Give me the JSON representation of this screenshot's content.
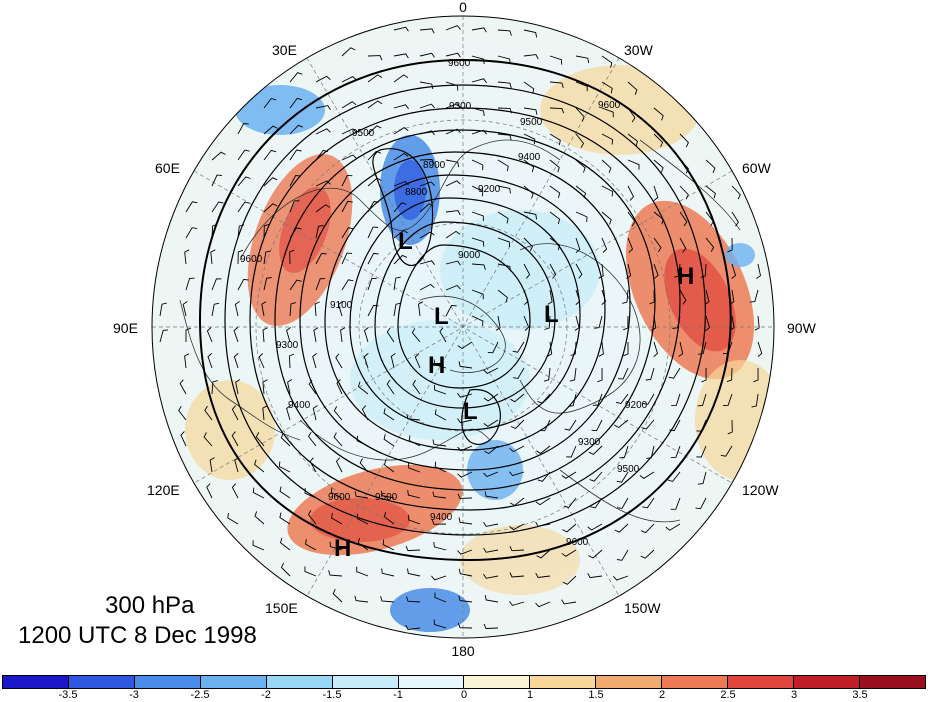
{
  "map": {
    "title_level": "300 hPa",
    "title_time": "1200 UTC 8 Dec 1998",
    "longitude_labels": {
      "deg0": "0",
      "w30": "30W",
      "w60": "60W",
      "w90": "90W",
      "w120": "120W",
      "w150": "150W",
      "deg180": "180",
      "e150": "150E",
      "e120": "120E",
      "e90": "90E",
      "e60": "60E",
      "e30": "30E"
    },
    "pressure_centers": [
      {
        "type": "H",
        "label": "H"
      },
      {
        "type": "H",
        "label": "H"
      },
      {
        "type": "H",
        "label": "H"
      },
      {
        "type": "L",
        "label": "L"
      },
      {
        "type": "L",
        "label": "L"
      },
      {
        "type": "L",
        "label": "L"
      },
      {
        "type": "L",
        "label": "L"
      }
    ],
    "contour_labels": [
      "9600",
      "9600",
      "9500",
      "9400",
      "9300",
      "9200",
      "9100",
      "9000",
      "8900",
      "8800",
      "9500",
      "9600",
      "9400",
      "9300",
      "9200",
      "9500",
      "9600",
      "9400",
      "9300",
      "9500",
      "9600"
    ],
    "colorbar": {
      "labels": [
        "-3.5",
        "-3",
        "-2.5",
        "-2",
        "-1.5",
        "-1",
        "0",
        "1",
        "1.5",
        "2",
        "2.5",
        "3",
        "3.5"
      ],
      "colors": [
        "#1a18c9",
        "#2e58e0",
        "#4a8de8",
        "#6bb1f0",
        "#98d6f5",
        "#c5ecf8",
        "#e8f7fb",
        "#fbf3d6",
        "#f7d79a",
        "#f2ab6e",
        "#ec7b55",
        "#e0463c",
        "#c01f28",
        "#9a0f1d"
      ]
    }
  }
}
